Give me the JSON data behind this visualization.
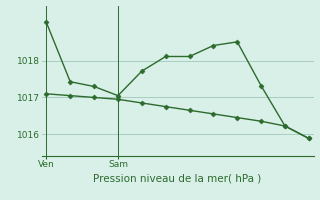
{
  "line1_x": [
    0,
    1,
    2,
    3,
    4,
    5,
    6,
    7,
    8,
    9,
    10,
    11
  ],
  "line1_y": [
    1019.05,
    1017.43,
    1017.3,
    1017.05,
    1017.72,
    1018.12,
    1018.12,
    1018.42,
    1018.52,
    1017.32,
    1016.22,
    1015.88
  ],
  "line2_x": [
    0,
    1,
    2,
    3,
    4,
    5,
    6,
    7,
    8,
    9,
    10,
    11
  ],
  "line2_y": [
    1017.1,
    1017.05,
    1017.0,
    1016.95,
    1016.85,
    1016.75,
    1016.65,
    1016.55,
    1016.45,
    1016.35,
    1016.22,
    1015.88
  ],
  "line_color": "#2d6a2d",
  "bg_color": "#d8f0e8",
  "grid_color": "#a0c8b8",
  "axis_color": "#2d6a2d",
  "xlabel": "Pression niveau de la mer( hPa )",
  "xlabel_fontsize": 7.5,
  "tick_fontsize": 6.5,
  "ven_x": 0,
  "sam_x": 3,
  "yticks": [
    1016,
    1017,
    1018
  ],
  "ylim": [
    1015.4,
    1019.5
  ],
  "xlim": [
    -0.2,
    11.2
  ]
}
